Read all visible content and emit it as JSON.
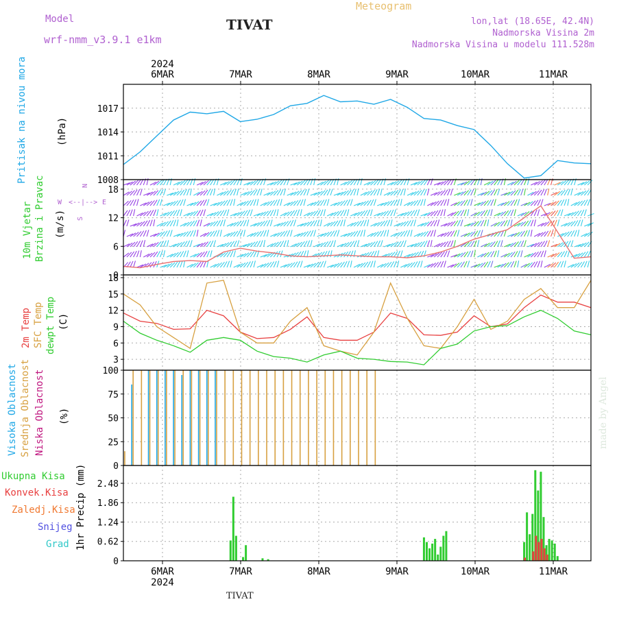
{
  "header": {
    "model_label": "Model",
    "model_name": "wrf-nmm_v3.9.1 e1km",
    "station": "TIVAT",
    "product": "Meteogram",
    "coords": "lon,lat (18.65E, 42.4N)",
    "elev": "Nadmorska Visina 2m",
    "elev_model": "Nadmorska Visina u modelu 111.528m",
    "footer_station": "TIVAT",
    "watermark": "made by Angel"
  },
  "colors": {
    "pressure": "#1ea7e6",
    "t2m": "#e84040",
    "sfc": "#d7a040",
    "dew": "#30cc30",
    "high_cloud": "#1ea7e6",
    "mid_cloud": "#d7a040",
    "low_cloud": "#c01880",
    "total_precip": "#30cc30",
    "conv_precip": "#e84040",
    "frozen": "#f07830",
    "snow": "#5050e0",
    "hail": "#30c8c8",
    "wind_purple": "#8a2be2",
    "wind_cyan": "#1ec8e6",
    "wind_speed_line": "#e87070"
  },
  "x_axis": {
    "top_year": "2024",
    "bottom_year": "2024",
    "days": [
      "6MAR",
      "7MAR",
      "8MAR",
      "9MAR",
      "10MAR",
      "11MAR"
    ]
  },
  "chart_data": [
    {
      "type": "line",
      "title": "Pritisak na nivou mora",
      "ylabel": "(hPa)",
      "ylim": [
        1008,
        1020
      ],
      "yticks": [
        "1008",
        "1011",
        "1014",
        "1017"
      ],
      "grid": true,
      "x_hours": [
        0,
        6,
        12,
        18,
        24,
        30,
        36,
        42,
        48,
        54,
        60,
        66,
        72,
        78,
        84,
        90,
        96,
        102,
        108,
        114,
        120,
        126,
        132,
        138,
        144,
        150,
        156,
        162,
        168
      ],
      "series": [
        {
          "values": [
            1009.9,
            1011.5,
            1013.5,
            1015.5,
            1016.5,
            1016.3,
            1016.6,
            1015.3,
            1015.6,
            1016.2,
            1017.3,
            1017.6,
            1018.6,
            1017.8,
            1017.9,
            1017.5,
            1018.1,
            1017.1,
            1015.7,
            1015.5,
            1014.8,
            1014.3,
            1012.3,
            1010.0,
            1008.2,
            1008.5,
            1010.4,
            1010.1,
            1010.0
          ]
        }
      ]
    },
    {
      "type": "line",
      "title": "10m Vjetar Brzina i Pravac",
      "ylabel": "(m/s)",
      "ylim": [
        0,
        20
      ],
      "yticks": [
        "0",
        "6",
        "12",
        "18"
      ],
      "compass_labels": [
        "N",
        "W",
        "E",
        "S",
        "<--|-->"
      ],
      "grid": true,
      "x_hours": [
        0,
        6,
        12,
        18,
        24,
        30,
        36,
        42,
        48,
        54,
        60,
        66,
        72,
        78,
        84,
        90,
        96,
        102,
        108,
        114,
        120,
        126,
        132,
        138,
        144,
        150,
        156,
        162,
        168
      ],
      "series": [
        {
          "values": [
            1.8,
            1.5,
            2.2,
            2.8,
            3.0,
            2.8,
            4.8,
            5.6,
            5.0,
            4.6,
            4.0,
            3.8,
            4.0,
            4.2,
            4.0,
            3.8,
            3.8,
            3.6,
            4.0,
            4.8,
            6.0,
            7.5,
            8.5,
            9.5,
            12.0,
            14.5,
            9.0,
            3.5,
            3.8
          ]
        }
      ]
    },
    {
      "type": "line",
      "title": "2m Temp / SFC Temp / dewpt Temp",
      "ylabel": "(C)",
      "ylim": [
        1,
        18.5
      ],
      "yticks": [
        "3",
        "6",
        "9",
        "12",
        "15",
        "18"
      ],
      "grid": true,
      "x_hours": [
        0,
        6,
        12,
        18,
        24,
        30,
        36,
        42,
        48,
        54,
        60,
        66,
        72,
        78,
        84,
        90,
        96,
        102,
        108,
        114,
        120,
        126,
        132,
        138,
        144,
        150,
        156,
        162,
        168
      ],
      "series": [
        {
          "name": "2m Temp",
          "values": [
            11.5,
            10.0,
            9.6,
            8.5,
            8.6,
            12.0,
            11.0,
            8.0,
            6.8,
            7.0,
            8.5,
            10.8,
            7.0,
            6.5,
            6.5,
            8.0,
            11.5,
            10.5,
            7.5,
            7.4,
            8.0,
            11.0,
            9.0,
            9.5,
            12.5,
            14.8,
            13.5,
            13.5,
            12.5
          ]
        },
        {
          "name": "SFC Temp",
          "values": [
            15.0,
            13.0,
            9.0,
            7.0,
            5.0,
            17.0,
            17.5,
            8.0,
            6.0,
            6.0,
            10.0,
            12.5,
            5.5,
            4.5,
            3.8,
            8.0,
            17.0,
            10.5,
            5.5,
            5.0,
            9.0,
            14.0,
            8.5,
            10.0,
            14.0,
            16.0,
            12.5,
            12.5,
            17.5
          ]
        },
        {
          "name": "dewpt Temp",
          "values": [
            10.0,
            7.8,
            6.5,
            5.5,
            4.3,
            6.5,
            7.0,
            6.5,
            4.5,
            3.5,
            3.2,
            2.5,
            3.8,
            4.5,
            3.2,
            3.0,
            2.6,
            2.5,
            2.0,
            5.0,
            5.8,
            8.2,
            9.0,
            9.2,
            10.8,
            12.0,
            10.5,
            8.2,
            7.5
          ]
        }
      ]
    },
    {
      "type": "bar",
      "title": "Visoka Oblacnost / Srednja Oblacnost / Niska Oblacnost",
      "ylabel": "(%)",
      "ylim": [
        0,
        100
      ],
      "yticks": [
        "0",
        "25",
        "50",
        "75",
        "100"
      ],
      "grid": true,
      "x_hours": [
        0,
        3,
        6,
        9,
        12,
        15,
        18,
        21,
        24,
        27,
        30,
        33,
        36,
        39,
        42,
        45,
        48,
        51,
        54,
        57,
        60,
        63,
        66,
        69,
        72,
        75,
        78,
        81,
        84,
        87,
        90,
        93,
        96,
        99,
        102,
        105,
        108,
        111,
        114,
        117,
        120,
        123,
        126,
        129,
        132,
        135,
        138,
        141,
        144,
        147,
        150,
        153,
        156,
        159,
        162,
        165,
        168
      ],
      "series": [
        {
          "name": "Visoka Oblacnost",
          "values": [
            0,
            85,
            0,
            100,
            100,
            100,
            100,
            95,
            100,
            100,
            100,
            100,
            0,
            0,
            0,
            0,
            0,
            0,
            0,
            0,
            0,
            0,
            0,
            0,
            0,
            0,
            0,
            0,
            0,
            0,
            0,
            0,
            0,
            0,
            0,
            0,
            0,
            0,
            0,
            0,
            0,
            0,
            0,
            0,
            0,
            0,
            0,
            0,
            0,
            0,
            0,
            0,
            0,
            0,
            0,
            0,
            0
          ]
        },
        {
          "name": "Srednja Oblacnost",
          "values": [
            15,
            100,
            100,
            100,
            100,
            100,
            100,
            100,
            100,
            100,
            100,
            100,
            100,
            100,
            100,
            100,
            100,
            100,
            100,
            100,
            100,
            100,
            100,
            100,
            100,
            100,
            100,
            100,
            100,
            100,
            100,
            0,
            0,
            0,
            0,
            0,
            0,
            0,
            0,
            0,
            0,
            0,
            0,
            0,
            0,
            0,
            0,
            0,
            0,
            0,
            0,
            0,
            0,
            0,
            0,
            0,
            0
          ]
        },
        {
          "name": "Niska Oblacnost",
          "values": [
            0,
            0,
            0,
            0,
            0,
            0,
            0,
            0,
            0,
            0,
            0,
            0,
            0,
            0,
            0,
            0,
            0,
            0,
            0,
            0,
            0,
            0,
            0,
            0,
            0,
            0,
            0,
            0,
            0,
            0,
            0,
            0,
            0,
            0,
            0,
            0,
            0,
            0,
            0,
            0,
            0,
            0,
            0,
            0,
            0,
            0,
            0,
            0,
            0,
            0,
            0,
            0,
            0,
            0,
            0,
            0,
            0
          ]
        }
      ],
      "bar_groups": [
        {
          "name": "Visoka Oblacnost",
          "x": [
            0,
            3,
            6,
            9,
            12,
            15,
            18,
            21,
            24,
            27,
            30,
            33,
            36,
            39,
            42,
            45,
            48,
            51,
            54,
            57,
            60,
            63,
            66,
            69,
            72,
            75,
            78,
            81,
            84,
            87,
            90,
            93,
            96,
            99,
            102,
            105,
            108,
            111,
            114,
            117,
            120,
            123,
            126,
            129,
            132,
            135,
            138,
            141,
            144,
            147,
            150,
            153,
            156,
            159,
            162,
            165,
            168
          ],
          "values": [
            0,
            85,
            0,
            100,
            100,
            100,
            100,
            95,
            100,
            100,
            100,
            100,
            0,
            0,
            0,
            0,
            0,
            0,
            0,
            0,
            0,
            0,
            0,
            0,
            0,
            0,
            0,
            0,
            0,
            0,
            0,
            0,
            0,
            0,
            0,
            0,
            0,
            0,
            0,
            0,
            0,
            0,
            0,
            0,
            0,
            0,
            0,
            0,
            0,
            0,
            0,
            0,
            0,
            0,
            0,
            0,
            0
          ]
        }
      ]
    },
    {
      "type": "bar",
      "title": "Ukupna Kisa / Konvek.Kisa / Zaledj.Kisa / Snijeg / Grad",
      "ylabel": "1hr Precip (mm)",
      "ylim": [
        0,
        3.05
      ],
      "yticks": [
        "0",
        "0.62",
        "1.24",
        "1.86",
        "2.48"
      ],
      "grid": true,
      "series": [
        {
          "name": "Ukupna Kisa",
          "x": [
            38.5,
            39.5,
            40.5,
            43,
            44,
            50,
            52,
            108,
            109,
            110,
            111,
            112,
            113,
            114,
            115,
            116,
            144,
            145,
            146,
            147,
            148,
            149,
            150,
            151,
            152,
            153,
            154,
            155,
            156
          ],
          "values": [
            0.65,
            2.05,
            0.8,
            0.12,
            0.5,
            0.08,
            0.05,
            0.75,
            0.6,
            0.4,
            0.55,
            0.7,
            0.2,
            0.45,
            0.8,
            0.95,
            0.6,
            1.55,
            0.85,
            1.5,
            2.9,
            2.25,
            2.85,
            1.4,
            0.5,
            0.7,
            0.65,
            0.55,
            0.15
          ]
        },
        {
          "name": "Konvek.Kisa",
          "x": [
            144,
            147,
            148,
            149,
            150,
            151,
            152
          ],
          "values": [
            0.1,
            0.3,
            0.8,
            0.6,
            0.7,
            0.4,
            0.2
          ]
        }
      ]
    }
  ],
  "labels": {
    "p1": [
      "Pritisak na nivou mora",
      "(hPa)"
    ],
    "p2": [
      "10m Vjetar",
      "Brzina i Pravac",
      "(m/s)"
    ],
    "p3": [
      "2m Temp",
      "SFC Temp",
      "dewpt Temp",
      "(C)"
    ],
    "p4": [
      "Visoka Oblacnost",
      "Srednja Oblacnost",
      "Niska Oblacnost",
      "(%)"
    ],
    "p5": [
      "Ukupna Kisa",
      "Konvek.Kisa",
      "Zaledj.Kisa",
      "Snijeg",
      "Grad",
      "1hr Precip (mm)"
    ]
  }
}
